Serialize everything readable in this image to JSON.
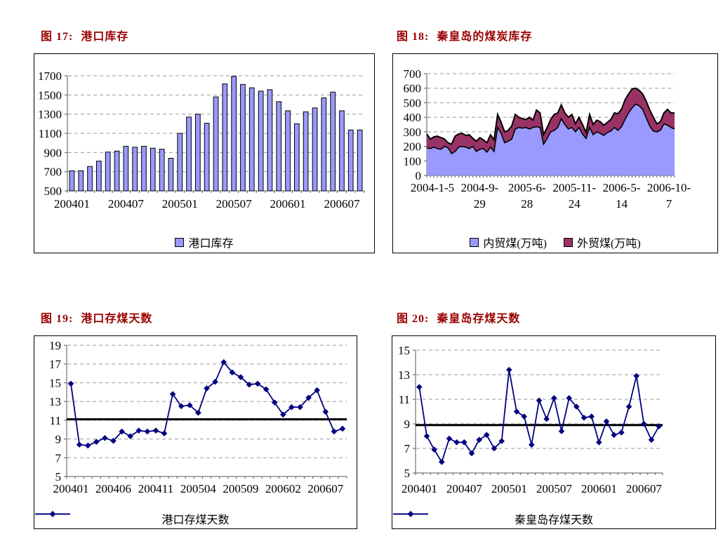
{
  "page": {
    "background": "#ffffff",
    "title_color": "#990000",
    "axis_color": "#555555",
    "gridline_color": "#999999"
  },
  "chart_data": [
    {
      "type": "bar",
      "title_prefix": "图 17:",
      "title": "港口库存",
      "legend": [
        {
          "label": "港口库存",
          "color": "#9999FF",
          "marker": "square"
        }
      ],
      "categories": [
        "200401",
        "200402",
        "200403",
        "200404",
        "200405",
        "200406",
        "200407",
        "200408",
        "200409",
        "200410",
        "200411",
        "200412",
        "200501",
        "200502",
        "200503",
        "200504",
        "200505",
        "200506",
        "200507",
        "200508",
        "200509",
        "200510",
        "200511",
        "200512",
        "200601",
        "200602",
        "200603",
        "200604",
        "200605",
        "200606",
        "200607",
        "200608",
        "200609"
      ],
      "values": [
        710,
        710,
        755,
        810,
        905,
        915,
        965,
        955,
        965,
        945,
        935,
        840,
        1100,
        1270,
        1300,
        1205,
        1480,
        1615,
        1695,
        1610,
        1575,
        1540,
        1555,
        1430,
        1335,
        1200,
        1325,
        1365,
        1470,
        1530,
        1335,
        1135,
        1135
      ],
      "x_tick_labels": [
        "200401",
        "200407",
        "200501",
        "200507",
        "200601",
        "200607"
      ],
      "x_tick_positions": [
        0,
        6,
        12,
        18,
        24,
        30
      ],
      "ylim": [
        500,
        1700
      ],
      "y_ticks": [
        500,
        700,
        900,
        1100,
        1300,
        1500,
        1700
      ],
      "bar_color": "#9999FF",
      "grid": "dashed",
      "legend_position": "bottom"
    },
    {
      "type": "area",
      "stacked": true,
      "title_prefix": "图 18:",
      "title": "秦皇岛的煤炭库存",
      "legend": [
        {
          "label": "内贸煤(万吨)",
          "color": "#9999FF",
          "marker": "square"
        },
        {
          "label": "外贸煤(万吨)",
          "color": "#993366",
          "marker": "square"
        }
      ],
      "x_tick_labels": [
        [
          "2004-1-5"
        ],
        [
          "2004-9-",
          "29"
        ],
        [
          "2005-6-",
          "28"
        ],
        [
          "2005-11-",
          "24"
        ],
        [
          "2006-5-",
          "14"
        ],
        [
          "2006-10-",
          "7"
        ]
      ],
      "ylim": [
        0,
        700
      ],
      "y_ticks": [
        0,
        100,
        200,
        300,
        400,
        500,
        600,
        700
      ],
      "series": [
        {
          "name": "内贸煤(万吨)",
          "color": "#9999FF",
          "values": [
            190,
            185,
            195,
            185,
            180,
            200,
            190,
            150,
            165,
            195,
            200,
            195,
            185,
            200,
            165,
            180,
            185,
            160,
            195,
            165,
            330,
            290,
            225,
            235,
            250,
            320,
            330,
            325,
            330,
            320,
            330,
            335,
            330,
            215,
            255,
            300,
            310,
            330,
            390,
            350,
            320,
            330,
            300,
            330,
            285,
            255,
            330,
            280,
            300,
            290,
            275,
            295,
            305,
            330,
            310,
            335,
            385,
            430,
            465,
            490,
            480,
            455,
            395,
            340,
            305,
            300,
            310,
            355,
            345,
            330,
            320
          ]
        },
        {
          "name": "外贸煤(万吨)",
          "color": "#993366",
          "values": [
            95,
            65,
            70,
            85,
            80,
            50,
            35,
            65,
            105,
            90,
            90,
            80,
            95,
            55,
            70,
            80,
            60,
            65,
            85,
            80,
            90,
            75,
            75,
            75,
            90,
            100,
            70,
            65,
            55,
            80,
            50,
            115,
            100,
            65,
            75,
            85,
            110,
            100,
            95,
            80,
            80,
            90,
            55,
            70,
            65,
            40,
            90,
            70,
            80,
            80,
            70,
            70,
            80,
            100,
            115,
            120,
            135,
            130,
            130,
            110,
            105,
            105,
            115,
            110,
            95,
            55,
            60,
            75,
            110,
            100,
            110
          ]
        }
      ],
      "grid": "dashed",
      "legend_position": "bottom"
    },
    {
      "type": "line",
      "title_prefix": "图 19:",
      "title": "港口存煤天数",
      "legend": [
        {
          "label": "港口存煤天数",
          "color": "#000080",
          "marker": "line-diamond"
        }
      ],
      "categories": [
        "200401",
        "200402",
        "200403",
        "200404",
        "200405",
        "200406",
        "200407",
        "200408",
        "200409",
        "200410",
        "200411",
        "200412",
        "200501",
        "200502",
        "200503",
        "200504",
        "200505",
        "200506",
        "200507",
        "200508",
        "200509",
        "200510",
        "200511",
        "200512",
        "200601",
        "200602",
        "200603",
        "200604",
        "200605",
        "200606",
        "200607",
        "200608",
        "200609"
      ],
      "values": [
        14.9,
        8.4,
        8.3,
        8.7,
        9.1,
        8.8,
        9.8,
        9.3,
        9.9,
        9.8,
        9.9,
        9.6,
        13.8,
        12.5,
        12.6,
        11.8,
        14.4,
        15.1,
        17.2,
        16.1,
        15.6,
        14.8,
        14.9,
        14.3,
        12.9,
        11.6,
        12.4,
        12.4,
        13.4,
        14.2,
        11.9,
        9.8,
        10.1
      ],
      "x_tick_labels": [
        "200401",
        "200406",
        "200411",
        "200504",
        "200509",
        "200602",
        "200607"
      ],
      "x_tick_positions": [
        0,
        5,
        10,
        15,
        20,
        25,
        30
      ],
      "ylim": [
        5,
        19
      ],
      "y_ticks": [
        5,
        7,
        9,
        11,
        13,
        15,
        17,
        19
      ],
      "line_color": "#000080",
      "marker": "diamond",
      "reference_line": {
        "value": 11.1,
        "color": "#000000"
      },
      "grid": "dashed",
      "legend_position": "bottom"
    },
    {
      "type": "line",
      "title_prefix": "图 20:",
      "title": "秦皇岛存煤天数",
      "legend": [
        {
          "label": "秦皇岛存煤天数",
          "color": "#000080",
          "marker": "line-diamond"
        }
      ],
      "categories": [
        "200401",
        "200402",
        "200403",
        "200404",
        "200405",
        "200406",
        "200407",
        "200408",
        "200409",
        "200410",
        "200411",
        "200412",
        "200501",
        "200502",
        "200503",
        "200504",
        "200505",
        "200506",
        "200507",
        "200508",
        "200509",
        "200510",
        "200511",
        "200512",
        "200601",
        "200602",
        "200603",
        "200604",
        "200605",
        "200606",
        "200607",
        "200608",
        "200609"
      ],
      "values": [
        12.0,
        8.0,
        6.9,
        5.9,
        7.8,
        7.5,
        7.5,
        6.6,
        7.7,
        8.1,
        7.0,
        7.6,
        13.4,
        10.0,
        9.6,
        7.3,
        10.9,
        9.4,
        11.1,
        8.4,
        11.1,
        10.4,
        9.5,
        9.6,
        7.5,
        9.2,
        8.1,
        8.3,
        10.4,
        12.9,
        9.0,
        7.7,
        8.8
      ],
      "x_tick_labels": [
        "200401",
        "200407",
        "200501",
        "200507",
        "200601",
        "200607"
      ],
      "x_tick_positions": [
        0,
        6,
        12,
        18,
        24,
        30
      ],
      "ylim": [
        5,
        15
      ],
      "y_ticks": [
        5,
        7,
        9,
        11,
        13,
        15
      ],
      "line_color": "#000080",
      "marker": "diamond",
      "reference_line": {
        "value": 8.9,
        "color": "#000000"
      },
      "grid": "dashed",
      "legend_position": "bottom"
    }
  ]
}
